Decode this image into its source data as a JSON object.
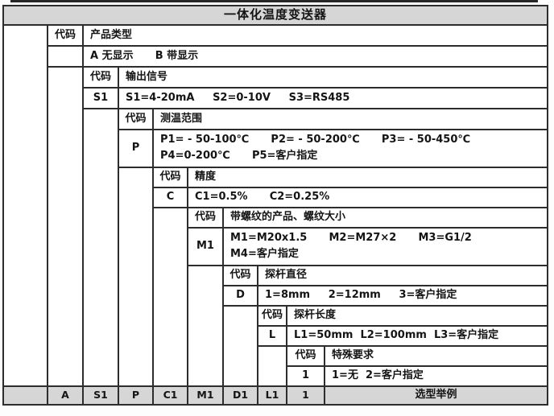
{
  "title": "一体化温度变送器",
  "steps": [
    {
      "header": "代码",
      "field": "产品类型",
      "code": "",
      "options1": "A 无显示      B 带显示"
    },
    {
      "header": "代码",
      "field": "输出信号",
      "code": "S1",
      "options1": "S1=4-20mA     S2=0-10V     S3=RS485"
    },
    {
      "header": "代码",
      "field": "测温范围",
      "code": "P",
      "options1": "P1= - 50-100℃      P2= - 50-200℃      P3= - 50-450℃",
      "options2": "P4=0-200℃      P5=客户指定"
    },
    {
      "header": "代码",
      "field": "精度",
      "code": "C",
      "options1": "C1=0.5%      C2=0.25%"
    },
    {
      "header": "代码",
      "field": "带螺纹的产品、螺纹大小",
      "code": "M1",
      "options1": "M1=M20x1.5      M2=M27×2      M3=G1/2",
      "options2": "M4=客户指定"
    },
    {
      "header": "代码",
      "field": "探杆直径",
      "code": "D",
      "options1": "1=8mm     2=12mm     3=客户指定"
    },
    {
      "header": "代码",
      "field": "探杆长度",
      "code": "L",
      "options1": "L1=50mm  L2=100mm  L3=客户指定"
    },
    {
      "header": "代码",
      "field": "特殊要求",
      "code": "1",
      "options1": "1=无  2=客户指定"
    }
  ],
  "summary": {
    "codes": [
      "A",
      "S1",
      "P",
      "C1",
      "M1",
      "D1",
      "L1",
      "1"
    ],
    "label": "选型举例"
  },
  "colors": {
    "header_bg": "#d6d6d6",
    "border": "#2d2d2d",
    "cell_bg": "#ffffff",
    "text": "#141414"
  }
}
